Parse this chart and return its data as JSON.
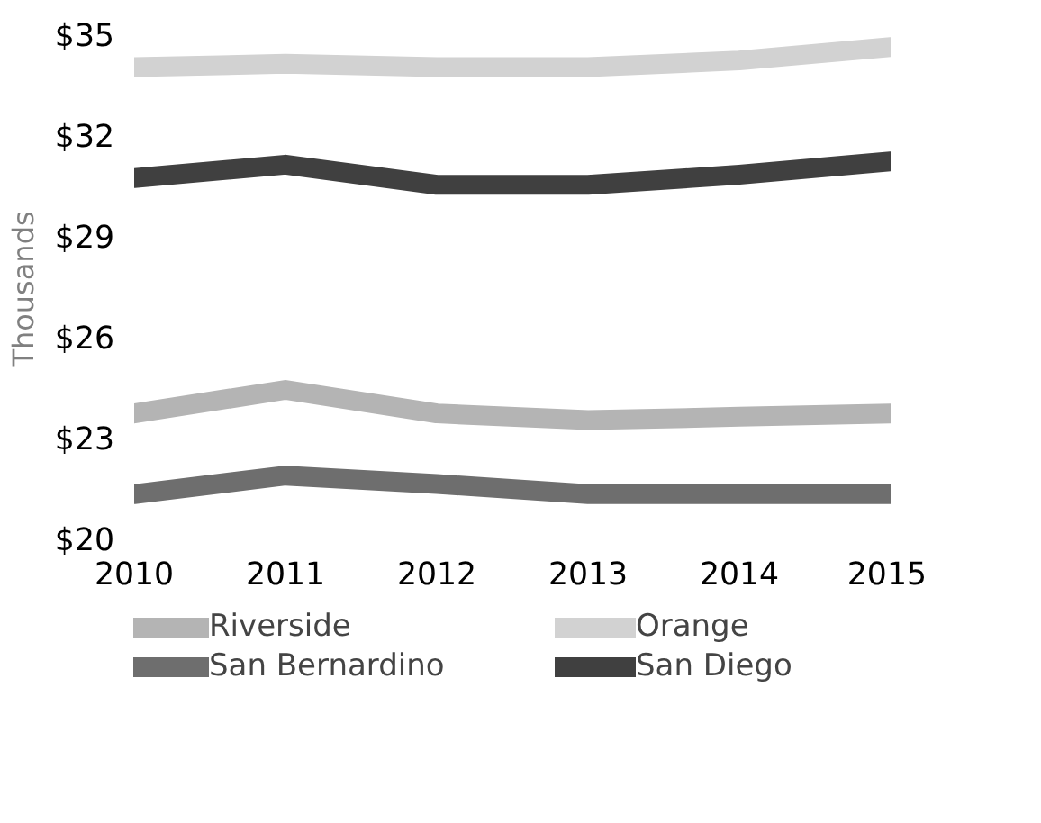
{
  "chart_data": {
    "type": "line",
    "ylabel": "Thousands",
    "x": [
      2010,
      2011,
      2012,
      2013,
      2014,
      2015
    ],
    "xlim": [
      2010,
      2015
    ],
    "xticks": [
      2010,
      2011,
      2012,
      2013,
      2014,
      2015
    ],
    "ylim": [
      20,
      35
    ],
    "yticks": [
      {
        "value": 20,
        "label": "$20"
      },
      {
        "value": 23,
        "label": "$23"
      },
      {
        "value": 26,
        "label": "$26"
      },
      {
        "value": 29,
        "label": "$29"
      },
      {
        "value": 32,
        "label": "$32"
      },
      {
        "value": 35,
        "label": "$35"
      }
    ],
    "grid": false,
    "legend": "bottom",
    "marker": "none",
    "line_style": "solid",
    "series": [
      {
        "name": "Riverside",
        "color": "#b4b4b4",
        "values": [
          23.8,
          24.5,
          23.8,
          23.6,
          23.7,
          23.8
        ]
      },
      {
        "name": "San Bernardino",
        "color": "#6e6e6e",
        "values": [
          21.4,
          21.95,
          21.7,
          21.4,
          21.4,
          21.4
        ]
      },
      {
        "name": "Orange",
        "color": "#d2d2d2",
        "values": [
          34.1,
          34.2,
          34.1,
          34.1,
          34.3,
          34.7
        ]
      },
      {
        "name": "San Diego",
        "color": "#404040",
        "values": [
          30.8,
          31.2,
          30.6,
          30.6,
          30.9,
          31.3
        ]
      }
    ]
  }
}
